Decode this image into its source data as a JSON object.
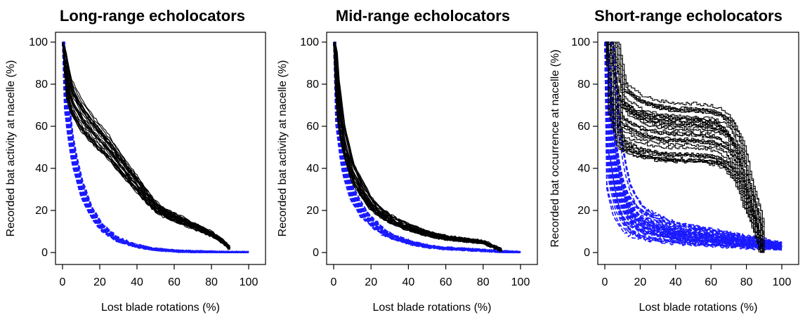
{
  "chart_data": [
    {
      "type": "line",
      "title": "Long-range echolocators",
      "xlabel": "Lost blade rotations (%)",
      "ylabel": "Recorded bat activity at nacelle (%)",
      "xlim": [
        0,
        100
      ],
      "ylim": [
        0,
        100
      ],
      "xticks": [
        "0",
        "20",
        "40",
        "60",
        "80",
        "100"
      ],
      "yticks": [
        "0",
        "20",
        "40",
        "60",
        "80",
        "100"
      ],
      "grid": false,
      "series": [
        {
          "color": "#000000",
          "style": "solid",
          "x": [
            0,
            2,
            5,
            10,
            15,
            20,
            25,
            30,
            35,
            40,
            45,
            50,
            55,
            60,
            65,
            70,
            75,
            80,
            85,
            90
          ],
          "values": [
            100,
            85,
            74,
            66,
            60,
            55,
            50,
            44,
            38,
            33,
            27,
            22,
            19,
            17,
            15,
            13,
            11,
            9,
            6,
            2
          ]
        },
        {
          "color": "#1a1aff",
          "style": "dashed",
          "x": [
            0,
            2,
            5,
            8,
            10,
            15,
            20,
            25,
            30,
            40,
            50,
            60,
            70,
            80,
            90,
            100
          ],
          "values": [
            100,
            72,
            50,
            38,
            31,
            20,
            13,
            9,
            6,
            3,
            1.5,
            0.8,
            0.4,
            0.2,
            0.1,
            0
          ]
        }
      ]
    },
    {
      "type": "line",
      "title": "Mid-range echolocators",
      "xlabel": "Lost blade rotations (%)",
      "ylabel": "Recorded bat activity at nacelle (%)",
      "xlim": [
        0,
        100
      ],
      "ylim": [
        0,
        100
      ],
      "xticks": [
        "0",
        "20",
        "40",
        "60",
        "80",
        "100"
      ],
      "yticks": [
        "0",
        "20",
        "40",
        "60",
        "80",
        "100"
      ],
      "grid": false,
      "series": [
        {
          "color": "#000000",
          "style": "solid",
          "x": [
            0,
            2,
            5,
            10,
            15,
            20,
            25,
            30,
            40,
            50,
            60,
            70,
            80,
            85,
            90
          ],
          "values": [
            100,
            75,
            55,
            38,
            30,
            23,
            19,
            16,
            12,
            9,
            7,
            6,
            5,
            3,
            1
          ]
        },
        {
          "color": "#1a1aff",
          "style": "dashed",
          "x": [
            0,
            2,
            5,
            10,
            15,
            20,
            25,
            30,
            40,
            50,
            60,
            70,
            80,
            90,
            100
          ],
          "values": [
            100,
            68,
            45,
            28,
            20,
            15,
            11,
            8,
            5,
            3,
            2,
            1.5,
            1,
            0.5,
            0
          ]
        }
      ]
    },
    {
      "type": "line",
      "title": "Short-range echolocators",
      "xlabel": "Lost blade rotations (%)",
      "ylabel": "Recorded bat occurrence at nacelle (%)",
      "xlim": [
        0,
        100
      ],
      "ylim": [
        0,
        100
      ],
      "xticks": [
        "0",
        "20",
        "40",
        "60",
        "80",
        "100"
      ],
      "yticks": [
        "0",
        "20",
        "40",
        "60",
        "80",
        "100"
      ],
      "grid": false,
      "series": [
        {
          "color": "#000000",
          "style": "solid",
          "x": [
            0,
            2,
            4,
            6,
            8,
            10,
            20,
            30,
            40,
            50,
            60,
            65,
            70,
            75,
            78,
            80,
            82,
            85,
            88,
            90
          ],
          "values": [
            100,
            95,
            88,
            80,
            72,
            65,
            60,
            58,
            57,
            57,
            56,
            55,
            52,
            45,
            38,
            30,
            25,
            18,
            8,
            0
          ]
        },
        {
          "color": "#1a1aff",
          "style": "dashed",
          "x": [
            0,
            2,
            4,
            6,
            8,
            10,
            12,
            15,
            20,
            30,
            40,
            50,
            60,
            70,
            80,
            90,
            100
          ],
          "values": [
            100,
            75,
            55,
            42,
            33,
            27,
            22,
            18,
            14,
            11,
            9,
            8,
            7,
            6,
            5,
            4,
            3
          ]
        }
      ]
    }
  ]
}
